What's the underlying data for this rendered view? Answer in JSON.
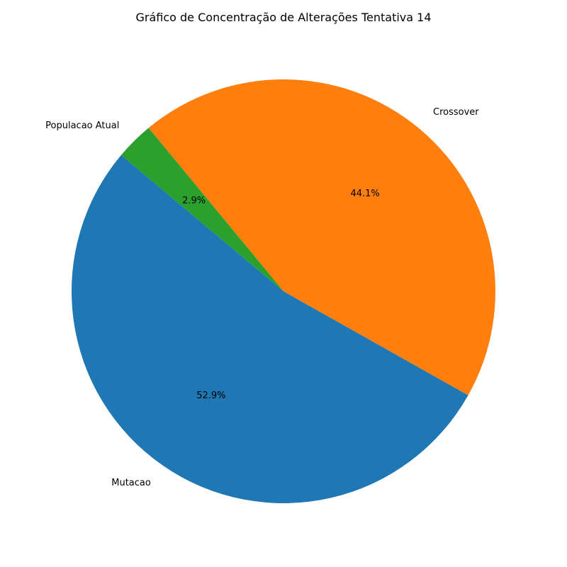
{
  "chart_data": {
    "type": "pie",
    "title": "Gráfico de Concentração de Alterações Tentativa 14",
    "start_angle_deg": 140,
    "direction": "counterclockwise",
    "slices": [
      {
        "label": "Mutacao",
        "value": 52.9,
        "pct_label": "52.9%",
        "color": "#1f77b4"
      },
      {
        "label": "Crossover",
        "value": 44.1,
        "pct_label": "44.1%",
        "color": "#ff7f0e"
      },
      {
        "label": "Populacao Atual",
        "value": 2.9,
        "pct_label": "2.9%",
        "color": "#2ca02c"
      }
    ]
  }
}
